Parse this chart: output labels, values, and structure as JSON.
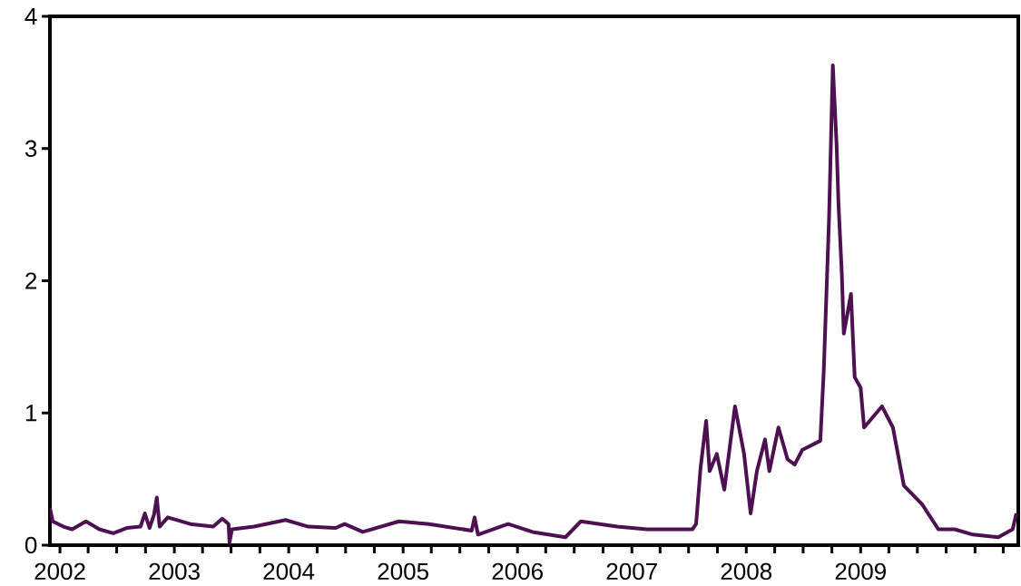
{
  "chart_data": {
    "type": "line",
    "x": [
      "2001-11-30",
      "2001-12-09",
      "2002-01-12",
      "2002-02-09",
      "2002-03-25",
      "2002-05-07",
      "2002-06-20",
      "2002-08-02",
      "2002-09-15",
      "2002-09-29",
      "2002-10-14",
      "2002-10-28",
      "2002-11-06",
      "2002-11-15",
      "2002-12-11",
      "2003-02-21",
      "2003-05-05",
      "2003-06-03",
      "2003-06-23",
      "2003-06-26",
      "2003-07-04",
      "2003-09-12",
      "2003-12-22",
      "2004-03-04",
      "2004-05-30",
      "2004-06-28",
      "2004-08-25",
      "2004-12-19",
      "2005-03-25",
      "2005-08-08",
      "2005-08-17",
      "2005-08-28",
      "2005-12-02",
      "2006-02-18",
      "2006-06-03",
      "2006-07-22",
      "2006-11-15",
      "2007-02-18",
      "2007-07-13",
      "2007-07-25",
      "2007-08-08",
      "2007-08-26",
      "2007-09-06",
      "2007-09-29",
      "2007-10-23",
      "2007-11-26",
      "2007-12-25",
      "2008-01-15",
      "2008-02-04",
      "2008-03-01",
      "2008-03-15",
      "2008-04-13",
      "2008-05-12",
      "2008-06-04",
      "2008-06-28",
      "2008-08-25",
      "2008-09-05",
      "2008-09-22",
      "2008-10-04",
      "2008-10-16",
      "2008-10-22",
      "2008-11-02",
      "2008-11-08",
      "2008-12-01",
      "2008-12-13",
      "2009-01-01",
      "2009-01-12",
      "2009-03-10",
      "2009-04-14",
      "2009-05-19",
      "2009-07-16",
      "2009-09-06",
      "2009-10-28",
      "2009-12-25",
      "2010-03-16",
      "2010-05-01",
      "2010-05-13"
    ],
    "series": [
      {
        "color": "#4d1050",
        "values": [
          0.28,
          0.18,
          0.14,
          0.12,
          0.18,
          0.12,
          0.09,
          0.13,
          0.14,
          0.24,
          0.13,
          0.23,
          0.36,
          0.14,
          0.21,
          0.16,
          0.14,
          0.2,
          0.16,
          0.02,
          0.12,
          0.14,
          0.19,
          0.14,
          0.13,
          0.16,
          0.1,
          0.18,
          0.16,
          0.11,
          0.21,
          0.08,
          0.16,
          0.1,
          0.06,
          0.18,
          0.14,
          0.12,
          0.12,
          0.16,
          0.58,
          0.94,
          0.56,
          0.69,
          0.42,
          1.05,
          0.69,
          0.24,
          0.56,
          0.8,
          0.56,
          0.89,
          0.65,
          0.61,
          0.72,
          0.79,
          1.32,
          2.48,
          3.63,
          3.03,
          2.59,
          2.04,
          1.6,
          1.9,
          1.27,
          1.19,
          0.89,
          1.05,
          0.89,
          0.45,
          0.31,
          0.12,
          0.12,
          0.08,
          0.06,
          0.12,
          0.24
        ]
      }
    ],
    "xlim": [
      "2001-11-30",
      "2010-05-19"
    ],
    "ylim": [
      0,
      4
    ],
    "yticks": [
      0,
      1,
      2,
      3,
      4
    ],
    "xticks": [
      {
        "value": "2002-01-01",
        "label": "2002"
      },
      {
        "value": "2003-01-01",
        "label": "2003"
      },
      {
        "value": "2004-01-01",
        "label": "2004"
      },
      {
        "value": "2005-01-01",
        "label": "2005"
      },
      {
        "value": "2006-01-01",
        "label": "2006"
      },
      {
        "value": "2007-01-01",
        "label": "2007"
      },
      {
        "value": "2008-01-01",
        "label": "2008"
      },
      {
        "value": "2009-01-01",
        "label": "2009"
      },
      {
        "value": "2002-04-01",
        "label": null
      },
      {
        "value": "2002-07-01",
        "label": null
      },
      {
        "value": "2002-10-01",
        "label": null
      },
      {
        "value": "2003-04-01",
        "label": null
      },
      {
        "value": "2003-07-01",
        "label": null
      },
      {
        "value": "2003-10-01",
        "label": null
      },
      {
        "value": "2004-04-01",
        "label": null
      },
      {
        "value": "2004-07-01",
        "label": null
      },
      {
        "value": "2004-10-01",
        "label": null
      },
      {
        "value": "2005-04-01",
        "label": null
      },
      {
        "value": "2005-07-01",
        "label": null
      },
      {
        "value": "2005-10-01",
        "label": null
      },
      {
        "value": "2006-04-01",
        "label": null
      },
      {
        "value": "2006-07-01",
        "label": null
      },
      {
        "value": "2006-10-01",
        "label": null
      },
      {
        "value": "2007-04-01",
        "label": null
      },
      {
        "value": "2007-07-01",
        "label": null
      },
      {
        "value": "2007-10-01",
        "label": null
      },
      {
        "value": "2008-04-01",
        "label": null
      },
      {
        "value": "2008-07-01",
        "label": null
      },
      {
        "value": "2008-10-01",
        "label": null
      },
      {
        "value": "2009-04-01",
        "label": null
      },
      {
        "value": "2009-07-01",
        "label": null
      },
      {
        "value": "2009-10-01",
        "label": null
      },
      {
        "value": "2010-01-01",
        "label": null
      },
      {
        "value": "2010-04-01",
        "label": null
      }
    ]
  }
}
